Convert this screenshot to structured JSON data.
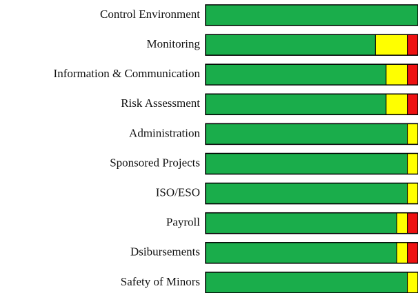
{
  "chart_data": {
    "type": "stacked-bar-horizontal",
    "categories": [
      "Control Environment",
      "Monitoring",
      "Information & Communication",
      "Risk Assessment",
      "Administration",
      "Sponsored Projects",
      "ISO/ESO",
      "Payroll",
      "Dsibursements",
      "Safety of Minors"
    ],
    "series": [
      {
        "color": "#1aad4b",
        "values": [
          100,
          80,
          85,
          85,
          95,
          95,
          95,
          90,
          90,
          95
        ]
      },
      {
        "color": "#ffff00",
        "values": [
          0,
          15,
          10,
          10,
          5,
          5,
          5,
          5,
          5,
          5
        ]
      },
      {
        "color": "#ee1111",
        "values": [
          0,
          5,
          5,
          5,
          0,
          0,
          0,
          5,
          5,
          0
        ]
      }
    ],
    "xlim": [
      0,
      100
    ]
  }
}
